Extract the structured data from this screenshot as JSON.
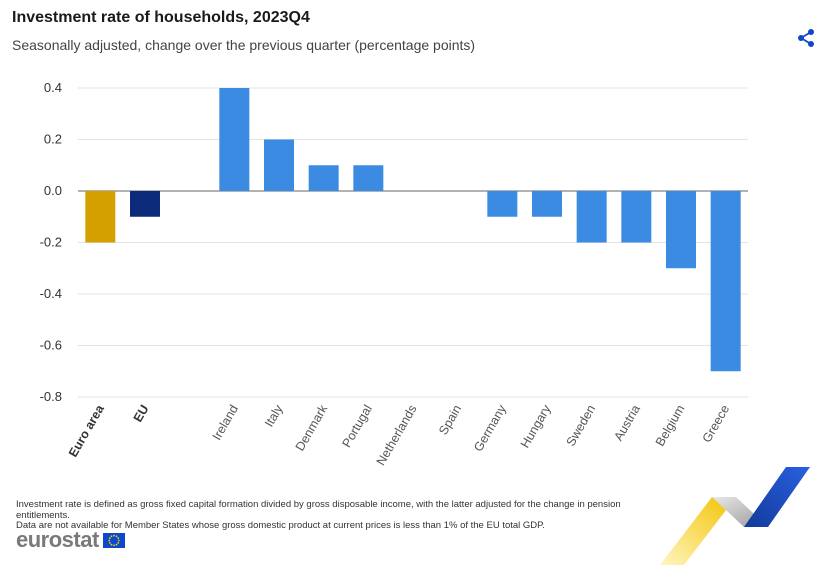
{
  "header": {
    "title": "Investment rate of households, 2023Q4",
    "subtitle": "Seasonally adjusted, change over the previous quarter (percentage points)"
  },
  "share": {
    "icon": "share-icon"
  },
  "chart_data": {
    "type": "bar",
    "categories": [
      "Euro area",
      "EU",
      "",
      "Ireland",
      "Italy",
      "Denmark",
      "Portugal",
      "Netherlands",
      "Spain",
      "Germany",
      "Hungary",
      "Sweden",
      "Austria",
      "Belgium",
      "Greece"
    ],
    "values": [
      -0.2,
      -0.1,
      null,
      0.4,
      0.2,
      0.1,
      0.1,
      0,
      0,
      -0.1,
      -0.1,
      -0.2,
      -0.2,
      -0.3,
      -0.7
    ],
    "bold_categories": [
      "Euro area",
      "EU"
    ],
    "colors": [
      "#d4a000",
      "#0b2a7a",
      "#3b8be3",
      "#3b8be3",
      "#3b8be3",
      "#3b8be3",
      "#3b8be3",
      "#3b8be3",
      "#3b8be3",
      "#3b8be3",
      "#3b8be3",
      "#3b8be3",
      "#3b8be3",
      "#3b8be3",
      "#3b8be3"
    ],
    "yticks": [
      "0.4",
      "0.2",
      "0.0",
      "-0.2",
      "-0.4",
      "-0.6",
      "-0.8"
    ],
    "ylim": [
      -0.8,
      0.4
    ],
    "grid": true,
    "title": "Investment rate of households, 2023Q4",
    "subtitle": "Seasonally adjusted, change over the previous quarter (percentage points)"
  },
  "footnotes": [
    "Investment rate is defined as gross fixed capital formation divided by gross disposable income, with the latter adjusted for the change in pension entitlements.",
    "Data are not available for Member States whose gross domestic product at current prices is less than 1% of the EU total GDP."
  ],
  "logo": {
    "text": "eurostat",
    "icon": "eu-flag-icon"
  },
  "colors": {
    "euro_area": "#d4a000",
    "eu": "#0b2a7a",
    "country": "#3b8be3",
    "share_icon": "#0e47cb"
  }
}
